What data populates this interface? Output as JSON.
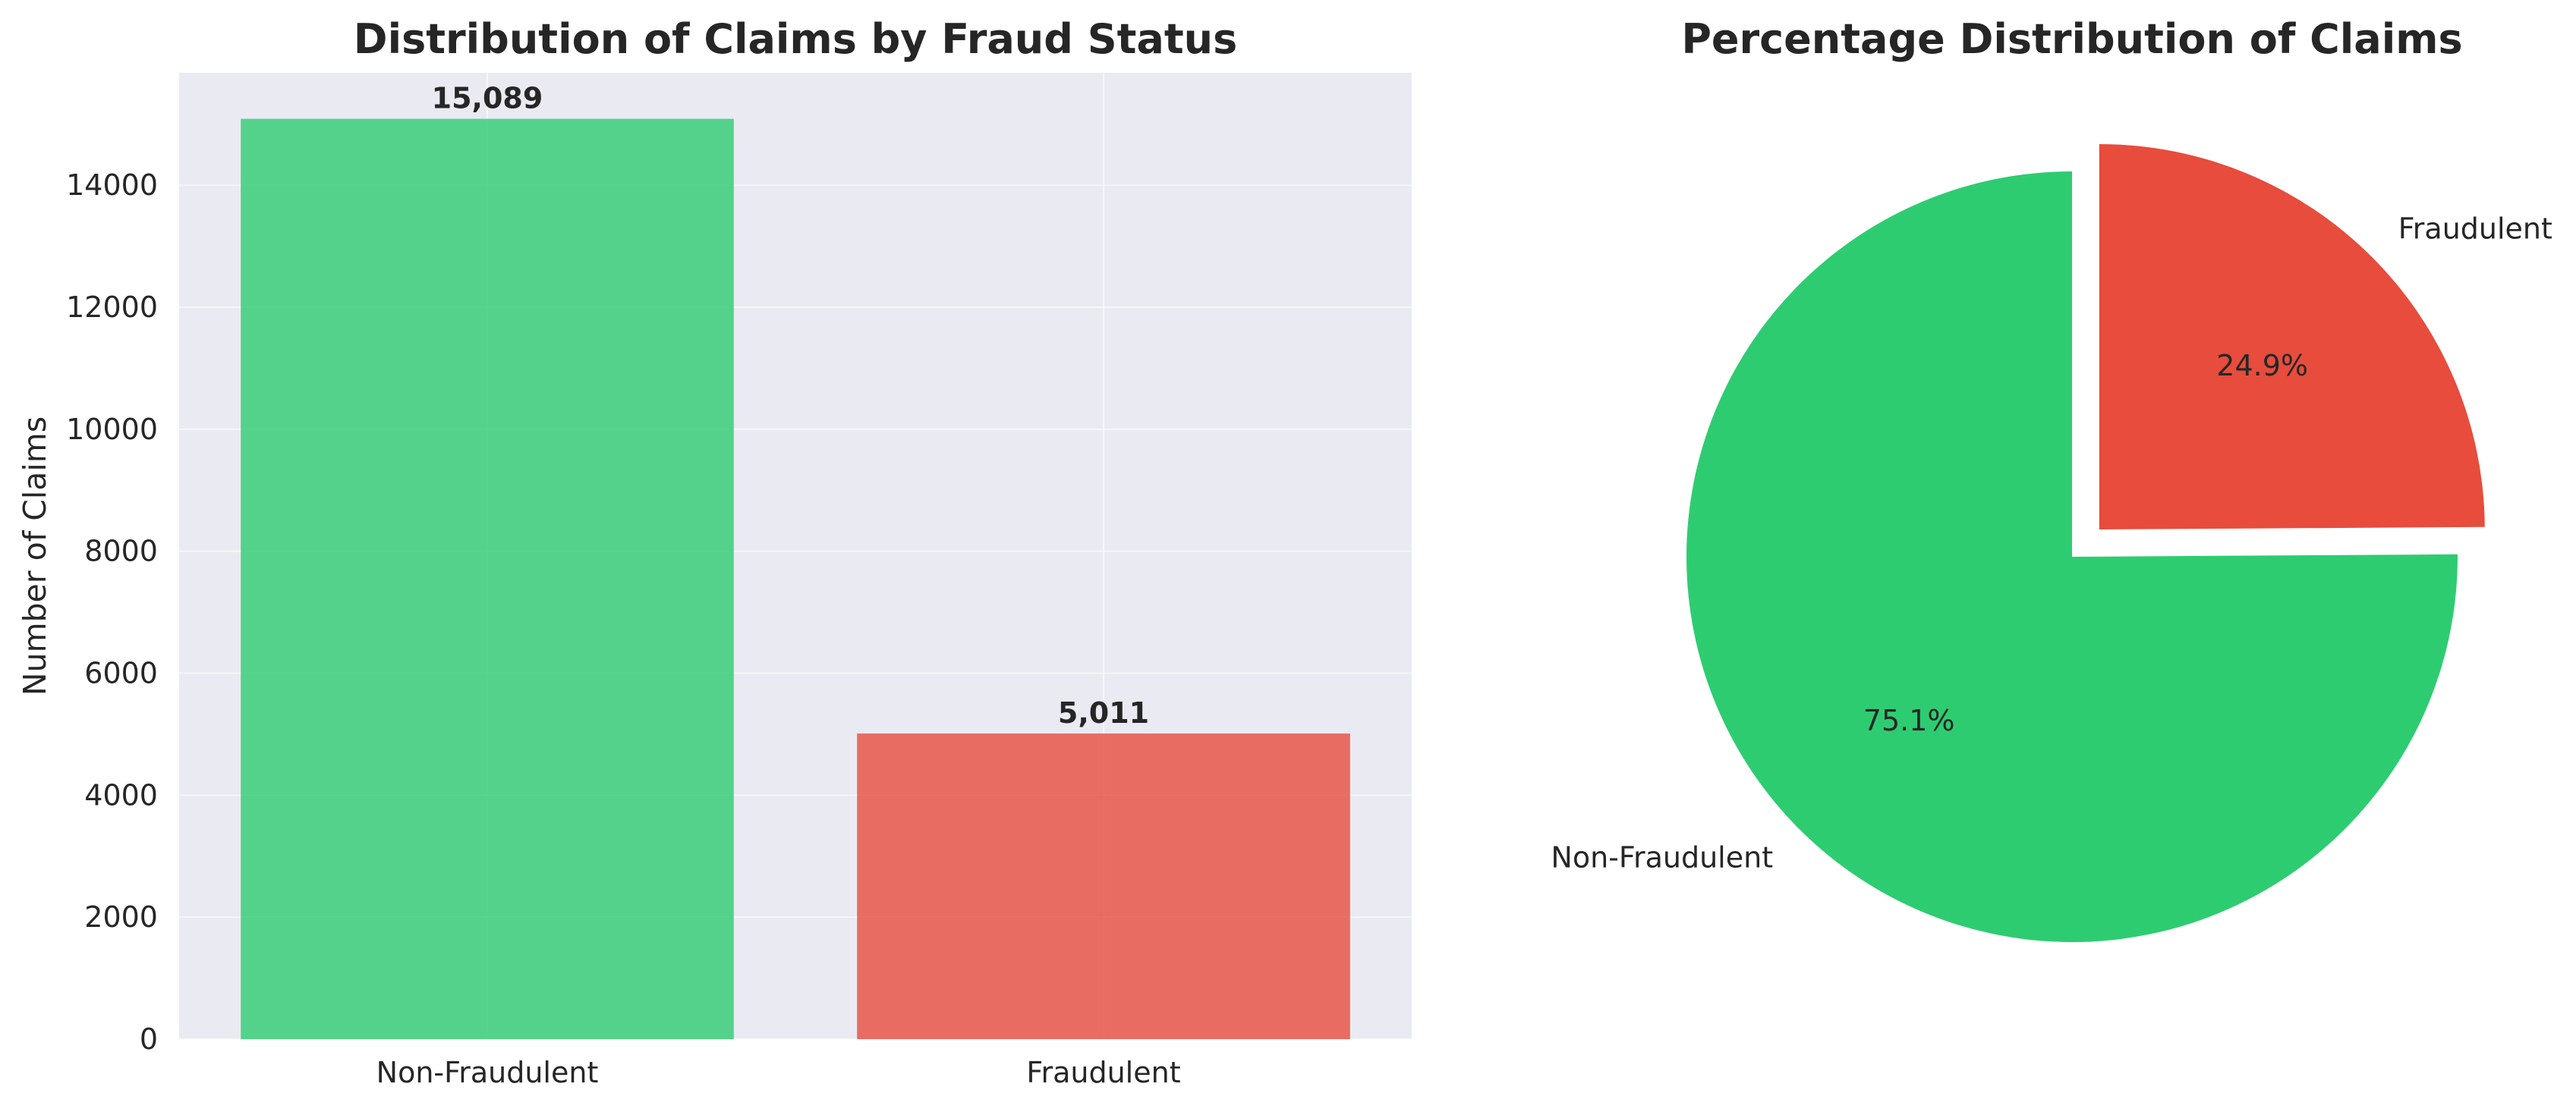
{
  "chart_data": [
    {
      "type": "bar",
      "title": "Distribution of Claims by Fraud Status",
      "xlabel": "",
      "ylabel": "Number of Claims",
      "categories": [
        "Non-Fraudulent",
        "Fraudulent"
      ],
      "values": [
        15089,
        5011
      ],
      "value_labels": [
        "15,089",
        "5,011"
      ],
      "colors": [
        "#2ecc71",
        "#e74c3c"
      ],
      "ylim": [
        0,
        15843
      ],
      "yticks": [
        0,
        2000,
        4000,
        6000,
        8000,
        10000,
        12000,
        14000
      ],
      "ytick_labels": [
        "0",
        "2000",
        "4000",
        "6000",
        "8000",
        "10000",
        "12000",
        "14000"
      ],
      "grid": true
    },
    {
      "type": "pie",
      "title": "Percentage Distribution of Claims",
      "labels": [
        "Non-Fraudulent",
        "Fraudulent"
      ],
      "values": [
        75.1,
        24.9
      ],
      "pct_labels": [
        "75.1%",
        "24.9%"
      ],
      "colors": [
        "#2ecc71",
        "#e74c3c"
      ],
      "explode": [
        0,
        0.1
      ],
      "startangle": 90
    }
  ]
}
